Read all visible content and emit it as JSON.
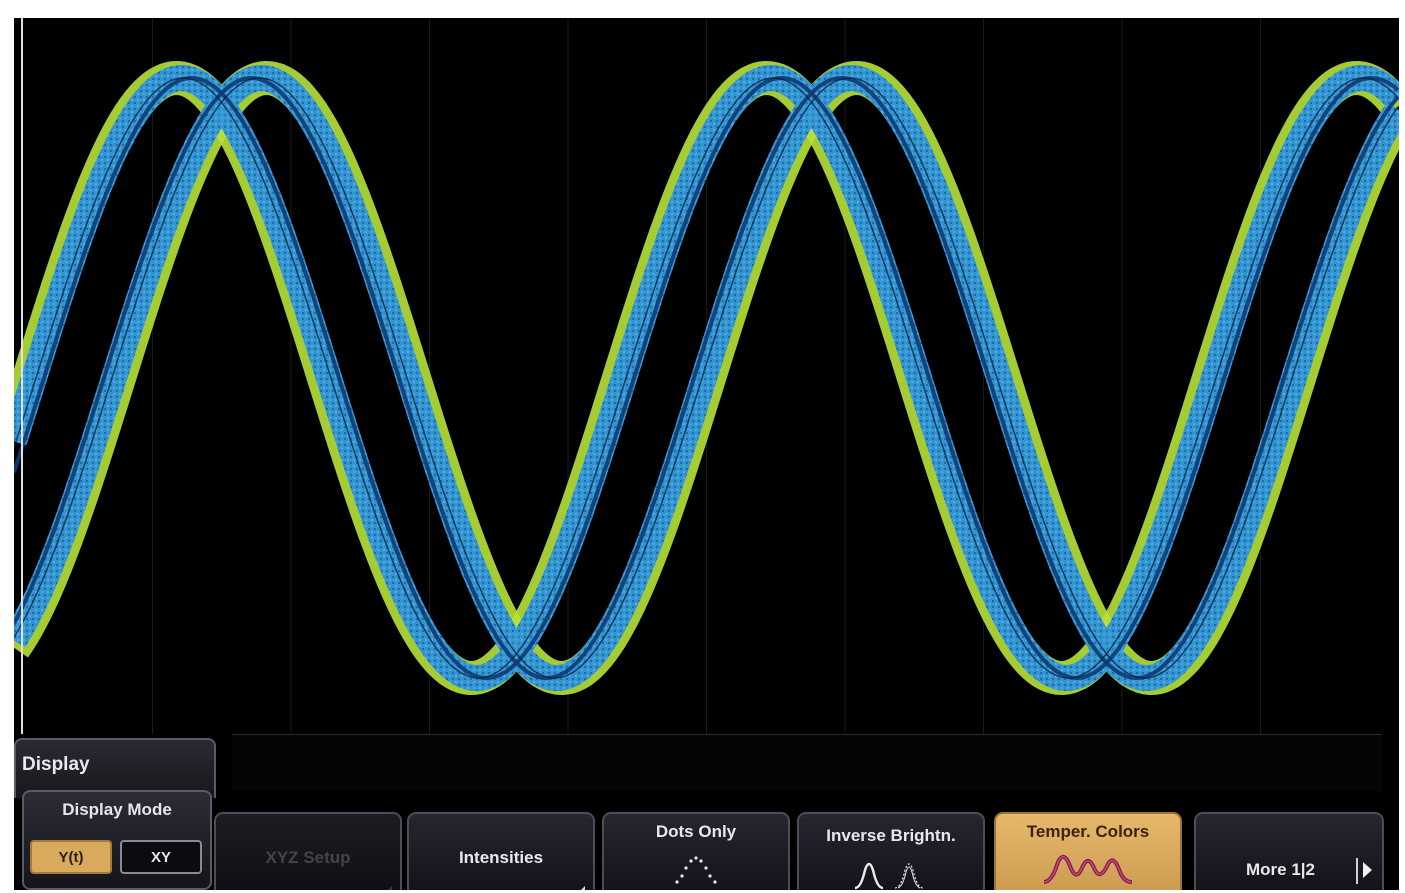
{
  "menu": {
    "title": "Display"
  },
  "display_mode": {
    "label": "Display Mode",
    "options": [
      {
        "label": "Y(t)",
        "selected": true
      },
      {
        "label": "XY",
        "selected": false
      }
    ]
  },
  "softkeys": [
    {
      "label": "XYZ Setup",
      "enabled": false,
      "has_submenu": true
    },
    {
      "label": "Intensities",
      "enabled": true,
      "has_submenu": true
    },
    {
      "label": "Dots Only",
      "enabled": true,
      "icon": "dots-wave-icon"
    },
    {
      "label": "Inverse Brightn.",
      "enabled": true,
      "icon": "inverse-brightness-icon"
    },
    {
      "label": "Temper. Colors",
      "enabled": true,
      "active": true,
      "icon": "temperature-wave-icon"
    },
    {
      "label": "More 1|2",
      "enabled": true,
      "icon": "next-page-icon"
    }
  ],
  "colors": {
    "screen_bg": "#000000",
    "trace_outer": "#3aa0d8",
    "trace_inner": "#103a70",
    "trace_crossing": "#b8e23a",
    "trace_hot": "#e03a1a",
    "softkey_active": "#d9a95d"
  }
}
